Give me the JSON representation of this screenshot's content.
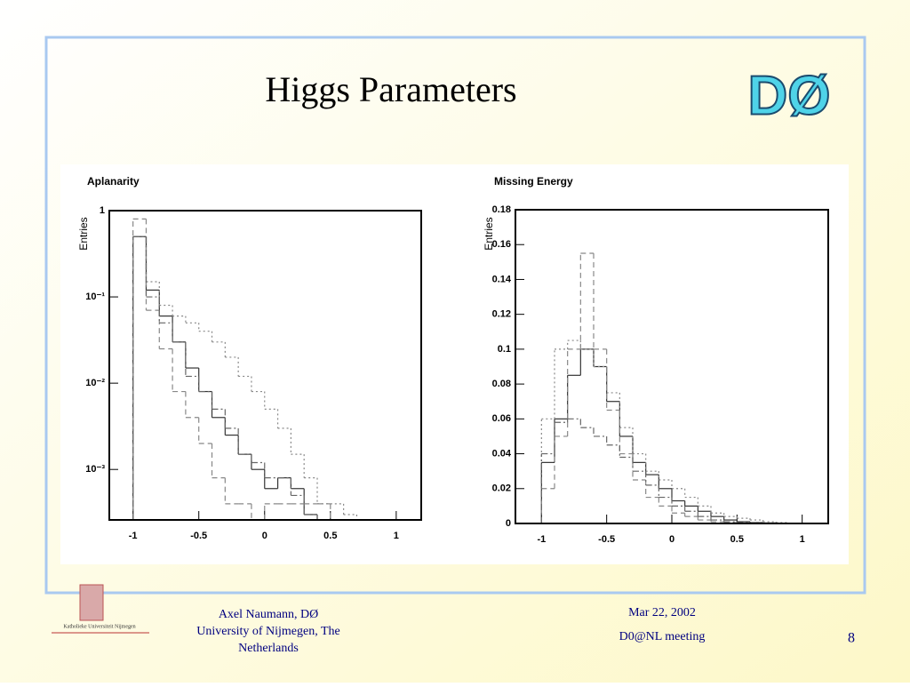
{
  "slide": {
    "title": "Higgs Parameters",
    "logo_text": "DØ",
    "university_logo_text": "Katholieke Universiteit Nijmegen",
    "footer_author": "Axel Naumann, DØ",
    "footer_affiliation": "University of Nijmegen, The Netherlands",
    "footer_date": "Mar 22, 2002",
    "footer_event": "D0@NL meeting",
    "page_number": "8"
  },
  "chart_data": [
    {
      "type": "histogram",
      "title": "Aplanarity",
      "y_label": "Entries",
      "log_y": true,
      "xlim": [
        -1.18,
        1.19
      ],
      "xticks": [
        -1,
        -0.5,
        0,
        0.5,
        1
      ],
      "ylim": [
        0.00026,
        1
      ],
      "yticks": [
        {
          "value": 0.001,
          "label": "10⁻³"
        },
        {
          "value": 0.01,
          "label": "10⁻²"
        },
        {
          "value": 0.1,
          "label": "10⁻¹"
        },
        1
      ],
      "bins": [
        -1,
        -0.9,
        -0.8,
        -0.7,
        -0.6,
        -0.5,
        -0.4,
        -0.3,
        -0.2,
        -0.1,
        0,
        0.1,
        0.2,
        0.3,
        0.4,
        0.5,
        0.6,
        0.7
      ],
      "series": [
        {
          "color": "#333333",
          "dash": "solid",
          "values": [
            0.5,
            0.12,
            0.06,
            0.03,
            0.015,
            0.008,
            0.004,
            0.0025,
            0.0015,
            0.001,
            0.0006,
            0.0008,
            0.0006,
            0.0003,
            null,
            null,
            null
          ]
        },
        {
          "color": "#888888",
          "dash": "dashed",
          "values": [
            0.8,
            0.07,
            0.025,
            0.008,
            0.004,
            0.002,
            0.0008,
            0.0004,
            0.0004,
            null,
            0.0004,
            0.0004,
            0.0004,
            0.0004,
            0.0004,
            null,
            null
          ]
        },
        {
          "color": "#888888",
          "dash": "dotted",
          "values": [
            0.5,
            0.15,
            0.08,
            0.06,
            0.05,
            0.04,
            0.03,
            0.02,
            0.012,
            0.008,
            0.005,
            0.003,
            0.0015,
            0.0008,
            0.0004,
            0.0004,
            0.0003
          ]
        },
        {
          "color": "#666666",
          "dash": "dashdot",
          "values": [
            0.5,
            0.1,
            0.05,
            0.03,
            0.012,
            0.008,
            0.005,
            0.003,
            0.0015,
            0.0012,
            0.0008,
            0.0008,
            0.0005,
            0.0003,
            null,
            null,
            null
          ]
        }
      ]
    },
    {
      "type": "histogram",
      "title": "Missing Energy",
      "y_label": "Entries",
      "log_y": false,
      "xlim": [
        -1.2,
        1.2
      ],
      "xticks": [
        -1,
        -0.5,
        0,
        0.5,
        1
      ],
      "ylim": [
        0,
        0.18
      ],
      "yticks": [
        0,
        0.02,
        0.04,
        0.06,
        0.08,
        0.1,
        0.12,
        0.14,
        0.16,
        0.18
      ],
      "bins": [
        -1,
        -0.9,
        -0.8,
        -0.7,
        -0.6,
        -0.5,
        -0.4,
        -0.3,
        -0.2,
        -0.1,
        0,
        0.1,
        0.2,
        0.3,
        0.4,
        0.5,
        0.6,
        0.7,
        0.8,
        0.9
      ],
      "series": [
        {
          "color": "#333333",
          "dash": "solid",
          "values": [
            0.035,
            0.06,
            0.085,
            0.1,
            0.09,
            0.07,
            0.05,
            0.035,
            0.028,
            0.02,
            0.013,
            0.01,
            0.007,
            0.004,
            0.002,
            0.001,
            0.0005,
            0.0003,
            0.0002
          ]
        },
        {
          "color": "#888888",
          "dash": "dashed",
          "values": [
            0.02,
            0.05,
            0.1,
            0.155,
            0.1,
            0.065,
            0.04,
            0.025,
            0.015,
            0.01,
            0.006,
            0.004,
            0.002,
            0.001,
            0.0005,
            0.0003,
            0.0002,
            0.0001,
            0
          ]
        },
        {
          "color": "#888888",
          "dash": "dotted",
          "values": [
            0.06,
            0.1,
            0.105,
            0.1,
            0.09,
            0.075,
            0.055,
            0.04,
            0.03,
            0.025,
            0.02,
            0.015,
            0.01,
            0.006,
            0.004,
            0.003,
            0.002,
            0.001,
            0.0005
          ]
        },
        {
          "color": "#666666",
          "dash": "dashdot",
          "values": [
            0.04,
            0.058,
            0.06,
            0.055,
            0.05,
            0.045,
            0.038,
            0.03,
            0.022,
            0.015,
            0.01,
            0.007,
            0.004,
            0.002,
            0.001,
            0.0005,
            0.0003,
            0.0002,
            0.0001
          ]
        }
      ]
    }
  ]
}
